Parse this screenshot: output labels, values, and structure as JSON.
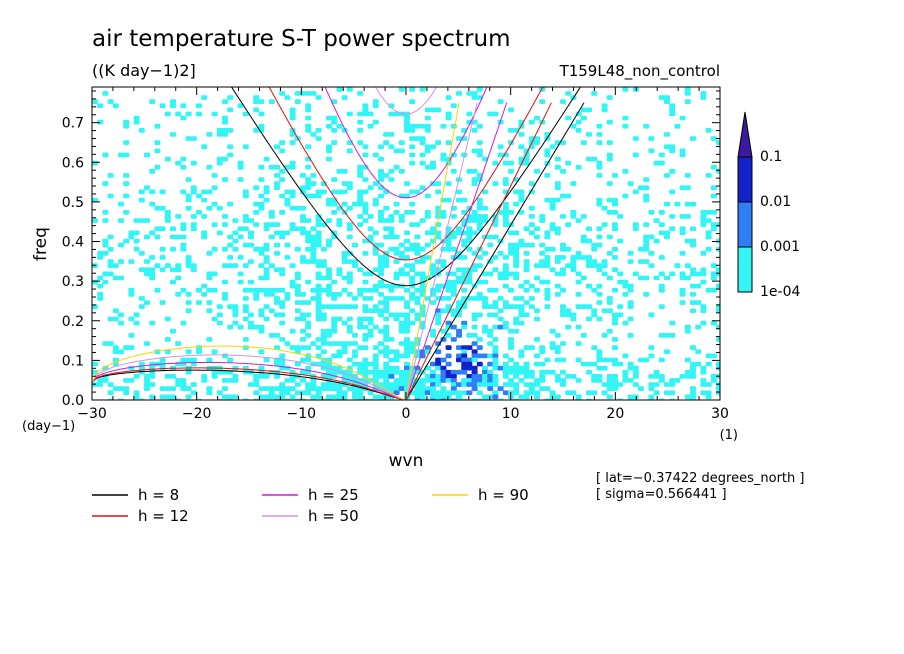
{
  "title": "air temperature S-T power spectrum",
  "units": "((K day−1)2]",
  "run_label": "T159L48_non_control",
  "chart_data": {
    "type": "heatmap",
    "title": "air temperature S-T power spectrum",
    "xlabel": "wvn",
    "ylabel": "freq",
    "x_unit_label": "(1)",
    "y_unit_label": "(day−1)",
    "xlim": [
      -30,
      30
    ],
    "ylim": [
      0,
      0.79
    ],
    "x_ticks": [
      -30,
      -20,
      -10,
      0,
      10,
      20,
      30
    ],
    "x_tick_labels": [
      "−30",
      "−20",
      "−10",
      "0",
      "10",
      "20",
      "30"
    ],
    "y_ticks": [
      0,
      0.1,
      0.2,
      0.3,
      0.4,
      0.5,
      0.6,
      0.7
    ],
    "y_tick_labels": [
      "0.0",
      "0.1",
      "0.2",
      "0.3",
      "0.4",
      "0.5",
      "0.6",
      "0.7"
    ],
    "colorbar": {
      "levels": [
        "1e-04",
        "0.001",
        "0.01",
        "0.1"
      ],
      "colors": [
        "#33f5f5",
        "#2f7ef5",
        "#1022c8",
        "#3a1a9e"
      ]
    },
    "dispersion_curves": [
      {
        "label": "h =  8",
        "h": 8,
        "color": "#000000"
      },
      {
        "label": "h = 12",
        "h": 12,
        "color": "#e01010"
      },
      {
        "label": "h = 25",
        "h": 25,
        "color": "#d21ed2"
      },
      {
        "label": "h = 50",
        "h": 50,
        "color": "#d890e0"
      },
      {
        "label": "h = 90",
        "h": 90,
        "color": "#ffd000"
      }
    ],
    "annotations": [
      "[ lat=−0.37422 degrees_north ]",
      "[ sigma=0.566441 ]"
    ]
  }
}
